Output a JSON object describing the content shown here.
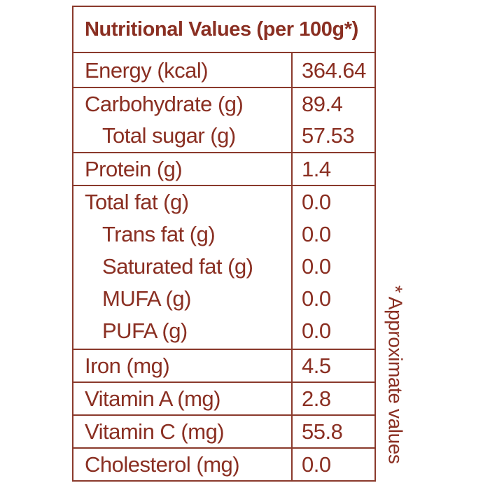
{
  "table": {
    "title": "Nutritional Values (per 100g*)",
    "rows": [
      {
        "label": "Energy (kcal)",
        "value": "364.64"
      },
      {
        "label": "Carbohydrate (g)",
        "value": "89.4"
      },
      {
        "label": "Total sugar (g)",
        "value": "57.53"
      },
      {
        "label": "Protein (g)",
        "value": "1.4"
      },
      {
        "label": "Total fat (g)",
        "value": "0.0"
      },
      {
        "label": "Trans fat (g)",
        "value": "0.0"
      },
      {
        "label": "Saturated fat (g)",
        "value": "0.0"
      },
      {
        "label": "MUFA (g)",
        "value": "0.0"
      },
      {
        "label": "PUFA (g)",
        "value": "0.0"
      },
      {
        "label": "Iron (mg)",
        "value": "4.5"
      },
      {
        "label": "Vitamin A (mg)",
        "value": "2.8"
      },
      {
        "label": "Vitamin C (mg)",
        "value": "55.8"
      },
      {
        "label": "Cholesterol (mg)",
        "value": "0.0"
      }
    ]
  },
  "footnote": "* Approximate values",
  "colors": {
    "text": "#8a2f22",
    "border": "#8a3a2c"
  }
}
